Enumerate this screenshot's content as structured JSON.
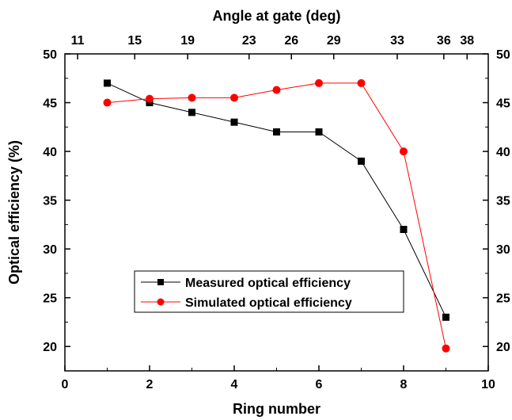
{
  "chart_data": {
    "type": "line",
    "xlabel": "Ring number",
    "ylabel": "Optical efficiency (%)",
    "x2label": "Angle at gate (deg)",
    "xlim": [
      0,
      10
    ],
    "ylim": [
      17.5,
      50
    ],
    "x_ticks": [
      0,
      2,
      4,
      6,
      8,
      10
    ],
    "y_ticks": [
      20,
      25,
      30,
      35,
      40,
      45,
      50
    ],
    "top_ticks": [
      {
        "x": 0.3,
        "label": "11"
      },
      {
        "x": 1.65,
        "label": "15"
      },
      {
        "x": 2.9,
        "label": "19"
      },
      {
        "x": 4.35,
        "label": "23"
      },
      {
        "x": 5.35,
        "label": "26"
      },
      {
        "x": 6.35,
        "label": "29"
      },
      {
        "x": 7.85,
        "label": "33"
      },
      {
        "x": 8.95,
        "label": "36"
      },
      {
        "x": 9.5,
        "label": "38"
      }
    ],
    "legend_position": "lower-left",
    "series": [
      {
        "name": "Measured optical efficiency",
        "color": "#000000",
        "marker": "square",
        "x": [
          1,
          2,
          3,
          4,
          5,
          6,
          7,
          8,
          9
        ],
        "y": [
          47,
          45,
          44,
          43,
          42,
          42,
          39,
          32,
          23
        ]
      },
      {
        "name": "Simulated optical efficiency",
        "color": "#ff0000",
        "marker": "circle",
        "x": [
          1,
          2,
          3,
          4,
          5,
          6,
          7,
          8,
          9
        ],
        "y": [
          45,
          45.4,
          45.5,
          45.5,
          46.3,
          47,
          47,
          40,
          19.8
        ]
      }
    ]
  }
}
